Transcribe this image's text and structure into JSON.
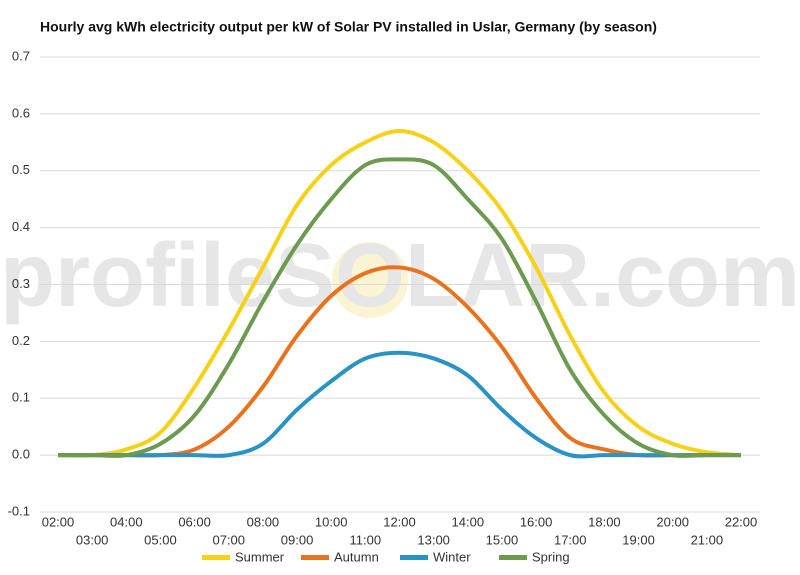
{
  "chart_data": {
    "type": "line",
    "title": "Hourly avg kWh electricity output per kW of Solar PV installed in Uslar, Germany (by season)",
    "watermark": "profileSOLAR.com",
    "categories": [
      "02:00",
      "03:00",
      "04:00",
      "05:00",
      "06:00",
      "07:00",
      "08:00",
      "09:00",
      "10:00",
      "11:00",
      "12:00",
      "13:00",
      "14:00",
      "15:00",
      "16:00",
      "17:00",
      "18:00",
      "19:00",
      "20:00",
      "21:00",
      "22:00"
    ],
    "series": [
      {
        "name": "Summer",
        "color": "#f7d117",
        "values": [
          0,
          0,
          0.01,
          0.04,
          0.12,
          0.22,
          0.33,
          0.44,
          0.51,
          0.55,
          0.57,
          0.55,
          0.5,
          0.43,
          0.33,
          0.21,
          0.11,
          0.05,
          0.02,
          0.005,
          0
        ]
      },
      {
        "name": "Autumn",
        "color": "#e8731e",
        "values": [
          0,
          0,
          0,
          0,
          0.01,
          0.05,
          0.12,
          0.21,
          0.28,
          0.32,
          0.33,
          0.31,
          0.26,
          0.19,
          0.1,
          0.03,
          0.01,
          0,
          0,
          0,
          0
        ]
      },
      {
        "name": "Winter",
        "color": "#2a93c5",
        "values": [
          0,
          0,
          0,
          0,
          0,
          0,
          0.02,
          0.08,
          0.13,
          0.17,
          0.18,
          0.17,
          0.14,
          0.08,
          0.03,
          0,
          0,
          0,
          0,
          0,
          0
        ]
      },
      {
        "name": "Spring",
        "color": "#6c9a4f",
        "values": [
          0,
          0,
          0,
          0.02,
          0.07,
          0.16,
          0.27,
          0.37,
          0.45,
          0.51,
          0.52,
          0.51,
          0.45,
          0.38,
          0.27,
          0.15,
          0.07,
          0.02,
          0,
          0,
          0
        ]
      }
    ],
    "ylim": [
      -0.1,
      0.7
    ],
    "yticks": [
      -0.1,
      {
        "value": 0,
        "label": "0.0"
      },
      0.1,
      0.2,
      0.3,
      0.4,
      0.5,
      0.6,
      0.7
    ],
    "grid": true,
    "legend": "bottom"
  }
}
